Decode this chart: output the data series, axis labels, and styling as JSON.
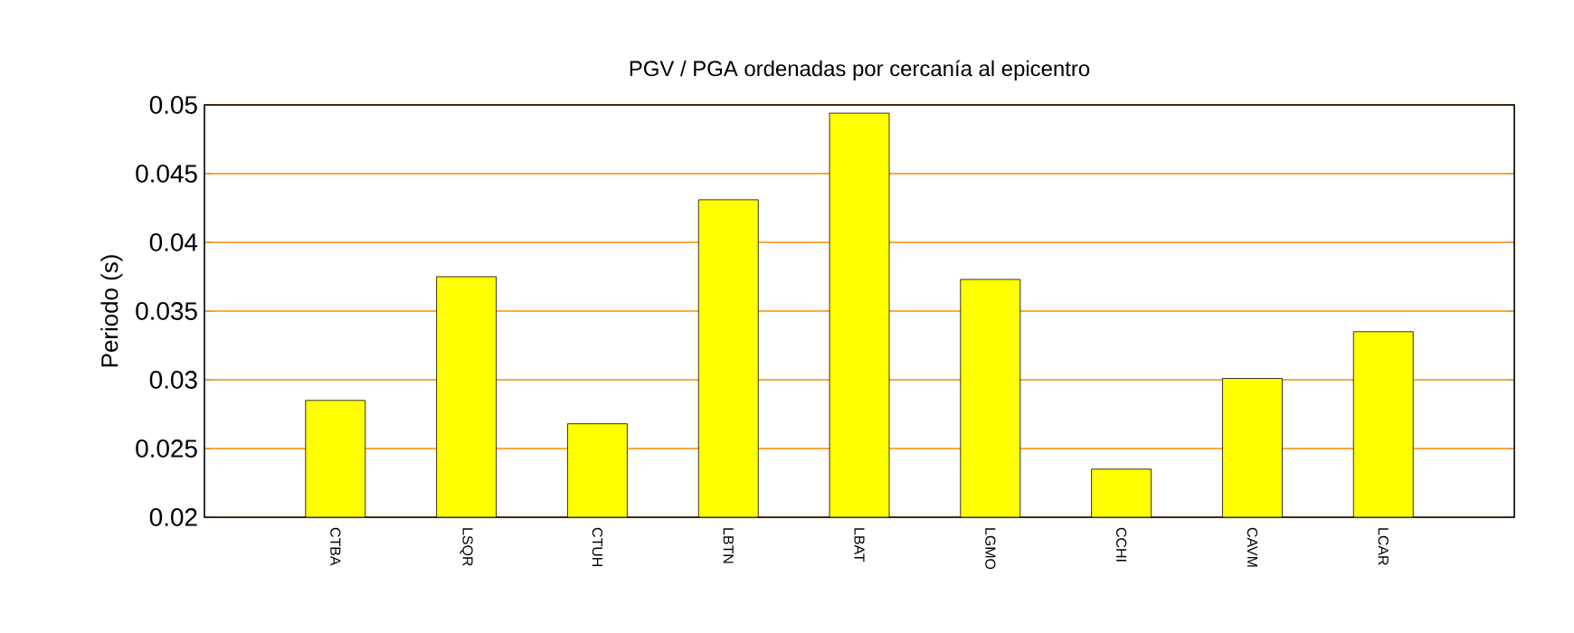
{
  "chart_data": {
    "type": "bar",
    "title": "PGV / PGA ordenadas por cercanía al epicentro",
    "ylabel": "Periodo (s)",
    "categories": [
      "CTBA",
      "LSQR",
      "CTUH",
      "LBTN",
      "LBAT",
      "LGMO",
      "CCHI",
      "CAVM",
      "LCAR"
    ],
    "values": [
      0.0285,
      0.0375,
      0.0268,
      0.0431,
      0.0494,
      0.0373,
      0.0235,
      0.0301,
      0.0335
    ],
    "color": "#ffff00",
    "ylim": [
      0.02,
      0.05
    ],
    "yticks": [
      0.02,
      0.025,
      0.03,
      0.035,
      0.04,
      0.045,
      0.05
    ],
    "grid": "y"
  }
}
